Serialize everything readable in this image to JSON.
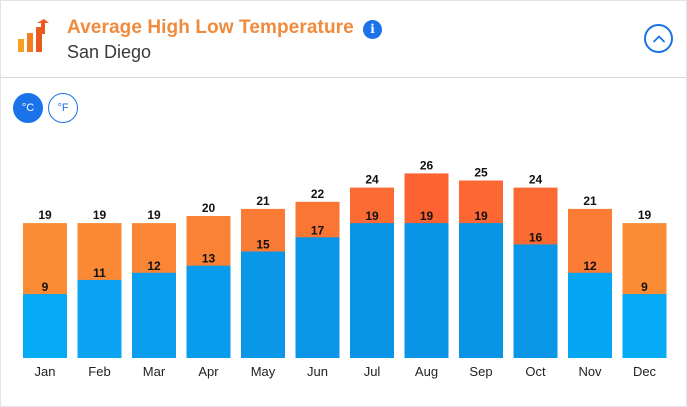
{
  "header": {
    "title": "Average High Low Temperature",
    "subtitle": "San Diego",
    "app_icon": "bar-chart-arrow-icon",
    "info_icon": "info-icon",
    "info_glyph": "i",
    "collapse_icon": "chevron-up-icon"
  },
  "units": {
    "celsius_label": "°C",
    "fahrenheit_label": "°F",
    "selected": "celsius"
  },
  "colors": {
    "accent": "#1a73e8",
    "title": "#f08a3c",
    "low_bar": "#0a9be6"
  },
  "chart_data": {
    "type": "bar",
    "categories": [
      "Jan",
      "Feb",
      "Mar",
      "Apr",
      "May",
      "Jun",
      "Jul",
      "Aug",
      "Sep",
      "Oct",
      "Nov",
      "Dec"
    ],
    "series": [
      {
        "values": [
          19,
          19,
          19,
          20,
          21,
          22,
          24,
          26,
          25,
          24,
          21,
          19
        ]
      },
      {
        "values": [
          9,
          11,
          12,
          13,
          15,
          17,
          19,
          19,
          19,
          16,
          12,
          9
        ]
      }
    ],
    "high_colors": [
      "#fa8c35",
      "#fa8835",
      "#fa8635",
      "#fa8235",
      "#fa7b35",
      "#fb7534",
      "#fc6b33",
      "#fd6332",
      "#fc6733",
      "#fc6a33",
      "#fb7c35",
      "#fa8c35"
    ],
    "low_colors": [
      "#05aaf5",
      "#0aa4f2",
      "#0a9fee",
      "#0a9cec",
      "#0a97e8",
      "#0a95e6",
      "#0a94e5",
      "#0a94e5",
      "#0a94e5",
      "#0a96e7",
      "#05a6f3",
      "#05aaf5"
    ],
    "ylim": [
      0,
      30
    ],
    "grid": false,
    "legend": "none"
  }
}
